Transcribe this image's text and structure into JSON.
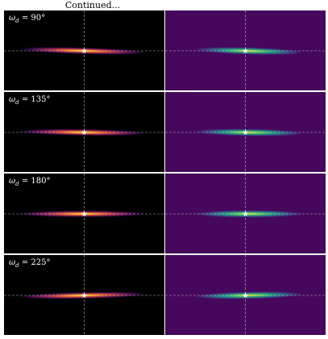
{
  "caption": "Continued...",
  "colors": {
    "left_background": "#000000",
    "right_background": "#46085c",
    "left_colormap": "inferno",
    "right_colormap": "viridis",
    "marker": "#ffffff",
    "crosshair": "#cfcfcf"
  },
  "marker_icon": "star-icon",
  "rows": [
    {
      "prefix": "ω",
      "subscript": "d",
      "value": " = 90°",
      "tilt_deg": 1.6
    },
    {
      "prefix": "ω",
      "subscript": "d",
      "value": " = 135°",
      "tilt_deg": 0.9
    },
    {
      "prefix": "ω",
      "subscript": "d",
      "value": " = 180°",
      "tilt_deg": 0.0
    },
    {
      "prefix": "ω",
      "subscript": "d",
      "value": " = 225°",
      "tilt_deg": -1.2
    }
  ]
}
